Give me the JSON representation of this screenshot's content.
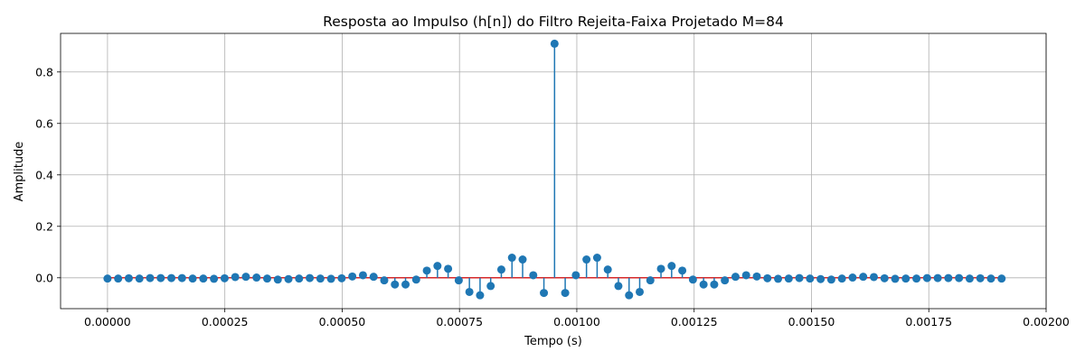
{
  "chart_data": {
    "type": "stem",
    "title": "Resposta ao Impulso (h[n]) do Filtro Rejeita-Faixa Projetado M=84",
    "xlabel": "Tempo (s)",
    "ylabel": "Amplitude",
    "xlim": [
      -0.0001,
      0.002
    ],
    "ylim": [
      -0.12,
      0.95
    ],
    "grid": true,
    "x_ticks": [
      0.0,
      0.00025,
      0.0005,
      0.00075,
      0.001,
      0.00125,
      0.0015,
      0.00175,
      0.002
    ],
    "x_tick_labels": [
      "0.00000",
      "0.00025",
      "0.00050",
      "0.00075",
      "0.00100",
      "0.00125",
      "0.00150",
      "0.00175",
      "0.00200"
    ],
    "y_ticks": [
      0.0,
      0.2,
      0.4,
      0.6,
      0.8
    ],
    "y_tick_labels": [
      "0.0",
      "0.2",
      "0.4",
      "0.6",
      "0.8"
    ],
    "sample_period": 2.268e-05,
    "baseline": 0.0,
    "values": [
      -0.003,
      -0.003,
      -0.002,
      -0.003,
      -0.001,
      -0.001,
      -0.001,
      -0.001,
      -0.003,
      -0.003,
      -0.004,
      -0.002,
      0.003,
      0.004,
      0.001,
      -0.003,
      -0.007,
      -0.005,
      -0.003,
      -0.001,
      -0.003,
      -0.004,
      -0.002,
      0.005,
      0.01,
      0.004,
      -0.01,
      -0.026,
      -0.026,
      -0.007,
      0.028,
      0.046,
      0.035,
      -0.01,
      -0.055,
      -0.068,
      -0.032,
      0.032,
      0.078,
      0.071,
      0.01,
      -0.059,
      0.91,
      -0.059,
      0.01,
      0.071,
      0.078,
      0.032,
      -0.032,
      -0.068,
      -0.055,
      -0.01,
      0.035,
      0.046,
      0.028,
      -0.007,
      -0.026,
      -0.026,
      -0.01,
      0.004,
      0.01,
      0.005,
      -0.002,
      -0.004,
      -0.003,
      -0.001,
      -0.003,
      -0.005,
      -0.007,
      -0.003,
      0.001,
      0.004,
      0.003,
      -0.002,
      -0.004,
      -0.003,
      -0.003,
      -0.001,
      -0.001,
      -0.001,
      -0.001,
      -0.003,
      -0.002,
      -0.003,
      -0.003
    ],
    "colors": {
      "stem": "#1f77b4",
      "marker": "#1f77b4",
      "baseline": "#d62728",
      "grid": "#b0b0b0",
      "axis": "#000000"
    }
  }
}
